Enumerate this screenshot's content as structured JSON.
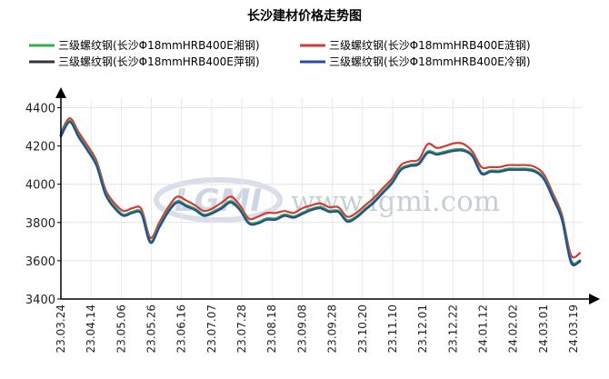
{
  "chart_data": {
    "type": "line",
    "title": "长沙建材价格走势图",
    "xlabel": "",
    "ylabel": "",
    "ylim": [
      3400,
      4450
    ],
    "yticks": [
      3400,
      3600,
      3800,
      4000,
      4200,
      4400
    ],
    "xticks": [
      "23.03.24",
      "23.04.14",
      "23.05.06",
      "23.05.26",
      "23.06.16",
      "23.07.07",
      "23.07.28",
      "23.08.18",
      "23.09.08",
      "23.09.28",
      "23.10.20",
      "23.11.10",
      "23.12.01",
      "23.12.22",
      "24.01.12",
      "24.02.02",
      "24.03.01",
      "24.03.19"
    ],
    "grid": true,
    "legend_position": "top",
    "watermark": "www.lgmi.com",
    "watermark_logo": "LGMI",
    "series": [
      {
        "name": "三级螺纹钢(长沙Φ18mmHRB400E湘钢)",
        "color": "#2db34a",
        "values": [
          4255,
          4330,
          4250,
          4180,
          4100,
          3950,
          3880,
          3840,
          3855,
          3850,
          3700,
          3780,
          3860,
          3910,
          3890,
          3870,
          3840,
          3855,
          3880,
          3910,
          3870,
          3800,
          3800,
          3820,
          3820,
          3840,
          3830,
          3850,
          3870,
          3880,
          3860,
          3860,
          3810,
          3830,
          3870,
          3910,
          3960,
          4010,
          4080,
          4100,
          4110,
          4170,
          4160,
          4170,
          4180,
          4180,
          4150,
          4060,
          4070,
          4070,
          4080,
          4080,
          4080,
          4070,
          4030,
          3930,
          3820,
          3600,
          3600
        ]
      },
      {
        "name": "三级螺纹钢(长沙Φ18mmHRB400E涟钢)",
        "color": "#d33a38",
        "values": [
          4270,
          4345,
          4270,
          4200,
          4120,
          3970,
          3900,
          3860,
          3875,
          3870,
          3720,
          3800,
          3880,
          3935,
          3915,
          3890,
          3860,
          3875,
          3905,
          3935,
          3890,
          3820,
          3830,
          3850,
          3850,
          3860,
          3850,
          3875,
          3890,
          3900,
          3880,
          3880,
          3830,
          3850,
          3890,
          3930,
          3980,
          4030,
          4100,
          4120,
          4130,
          4210,
          4190,
          4200,
          4215,
          4210,
          4170,
          4090,
          4090,
          4090,
          4100,
          4100,
          4100,
          4090,
          4050,
          3950,
          3840,
          3630,
          3640
        ]
      },
      {
        "name": "三级螺纹钢(长沙Φ18mmHRB400E萍钢)",
        "color": "#333333",
        "values": [
          4250,
          4325,
          4245,
          4175,
          4095,
          3945,
          3875,
          3835,
          3850,
          3845,
          3695,
          3775,
          3855,
          3905,
          3885,
          3865,
          3835,
          3850,
          3875,
          3905,
          3865,
          3795,
          3795,
          3815,
          3815,
          3835,
          3825,
          3845,
          3865,
          3875,
          3855,
          3855,
          3805,
          3825,
          3865,
          3905,
          3955,
          4005,
          4075,
          4095,
          4105,
          4165,
          4155,
          4165,
          4175,
          4175,
          4145,
          4055,
          4065,
          4065,
          4075,
          4075,
          4075,
          4065,
          4025,
          3925,
          3815,
          3595,
          3595
        ]
      },
      {
        "name": "三级螺纹钢(长沙Φ18mmHRB400E冷钢)",
        "color": "#2a4d9e",
        "values": [
          4250,
          4325,
          4245,
          4175,
          4095,
          3945,
          3875,
          3835,
          3850,
          3845,
          3695,
          3775,
          3855,
          3905,
          3885,
          3865,
          3835,
          3850,
          3875,
          3905,
          3865,
          3795,
          3795,
          3815,
          3815,
          3835,
          3825,
          3845,
          3865,
          3875,
          3855,
          3855,
          3805,
          3825,
          3865,
          3905,
          3955,
          4005,
          4075,
          4095,
          4105,
          4165,
          4155,
          4165,
          4175,
          4175,
          4145,
          4055,
          4065,
          4065,
          4075,
          4075,
          4075,
          4065,
          4025,
          3925,
          3815,
          3590,
          3600
        ]
      }
    ]
  }
}
